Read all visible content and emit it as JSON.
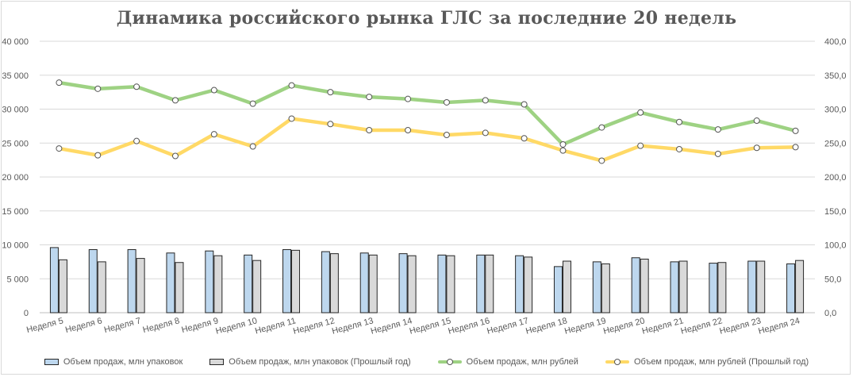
{
  "chart_data": {
    "type": "bar+line",
    "title": "Динамика российского рынка ГЛС за последние 20 недель",
    "categories": [
      "Неделя 5",
      "Неделя 6",
      "Неделя 7",
      "Неделя 8",
      "Неделя 9",
      "Неделя 10",
      "Неделя 11",
      "Неделя 12",
      "Неделя 13",
      "Неделя 14",
      "Неделя 15",
      "Неделя 16",
      "Неделя 17",
      "Неделя 18",
      "Неделя 19",
      "Неделя 20",
      "Неделя 21",
      "Неделя 22",
      "Неделя 23",
      "Неделя 24"
    ],
    "y_left": {
      "min": 0,
      "max": 40000,
      "step": 5000,
      "ticks": [
        "0",
        "5 000",
        "10 000",
        "15 000",
        "20 000",
        "25 000",
        "30 000",
        "35 000",
        "40 000"
      ]
    },
    "y_right": {
      "min": 0,
      "max": 400,
      "step": 50,
      "ticks": [
        "0,0",
        "50,0",
        "100,0",
        "150,0",
        "200,0",
        "250,0",
        "300,0",
        "350,0",
        "400,0"
      ]
    },
    "grid": true,
    "legend_position": "bottom",
    "series": [
      {
        "name": "Объем продаж, млн упаковок",
        "kind": "bar",
        "axis": "left",
        "color": "#bdd7ee",
        "values": [
          9600,
          9300,
          9300,
          8800,
          9100,
          8500,
          9300,
          9000,
          8800,
          8700,
          8500,
          8500,
          8400,
          6800,
          7500,
          8100,
          7500,
          7300,
          7600,
          7200
        ]
      },
      {
        "name": "Объем продаж, млн упаковок (Прошлый год)",
        "kind": "bar",
        "axis": "left",
        "color": "#d9d9d9",
        "values": [
          7800,
          7500,
          8000,
          7400,
          8400,
          7700,
          9200,
          8700,
          8500,
          8400,
          8400,
          8500,
          8200,
          7600,
          7200,
          7900,
          7600,
          7400,
          7600,
          7700
        ]
      },
      {
        "name": "Объем продаж, млн рублей",
        "kind": "line",
        "axis": "right",
        "color": "#9ed283",
        "values": [
          339,
          330,
          333,
          313,
          328,
          308,
          335,
          325,
          318,
          315,
          310,
          313,
          307,
          248,
          273,
          295,
          281,
          270,
          283,
          268
        ]
      },
      {
        "name": "Объем продаж, млн рублей (Прошлый год)",
        "kind": "line",
        "axis": "right",
        "color": "#ffd966",
        "values": [
          242,
          232,
          253,
          231,
          263,
          245,
          286,
          278,
          269,
          269,
          262,
          265,
          257,
          239,
          224,
          246,
          241,
          234,
          243,
          244
        ]
      }
    ]
  }
}
